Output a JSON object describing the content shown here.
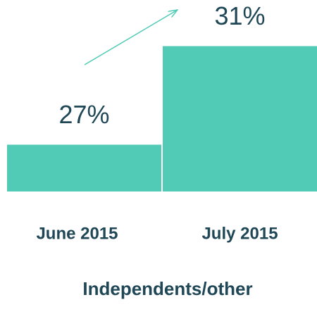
{
  "chart_data": {
    "type": "bar",
    "categories": [
      "June 2015",
      "July 2015"
    ],
    "values": [
      27,
      31
    ],
    "value_labels": [
      "27%",
      "31%"
    ],
    "color": "#52cbb6",
    "ylim": [
      25.1,
      32
    ],
    "xlabel": "Independents/other"
  }
}
